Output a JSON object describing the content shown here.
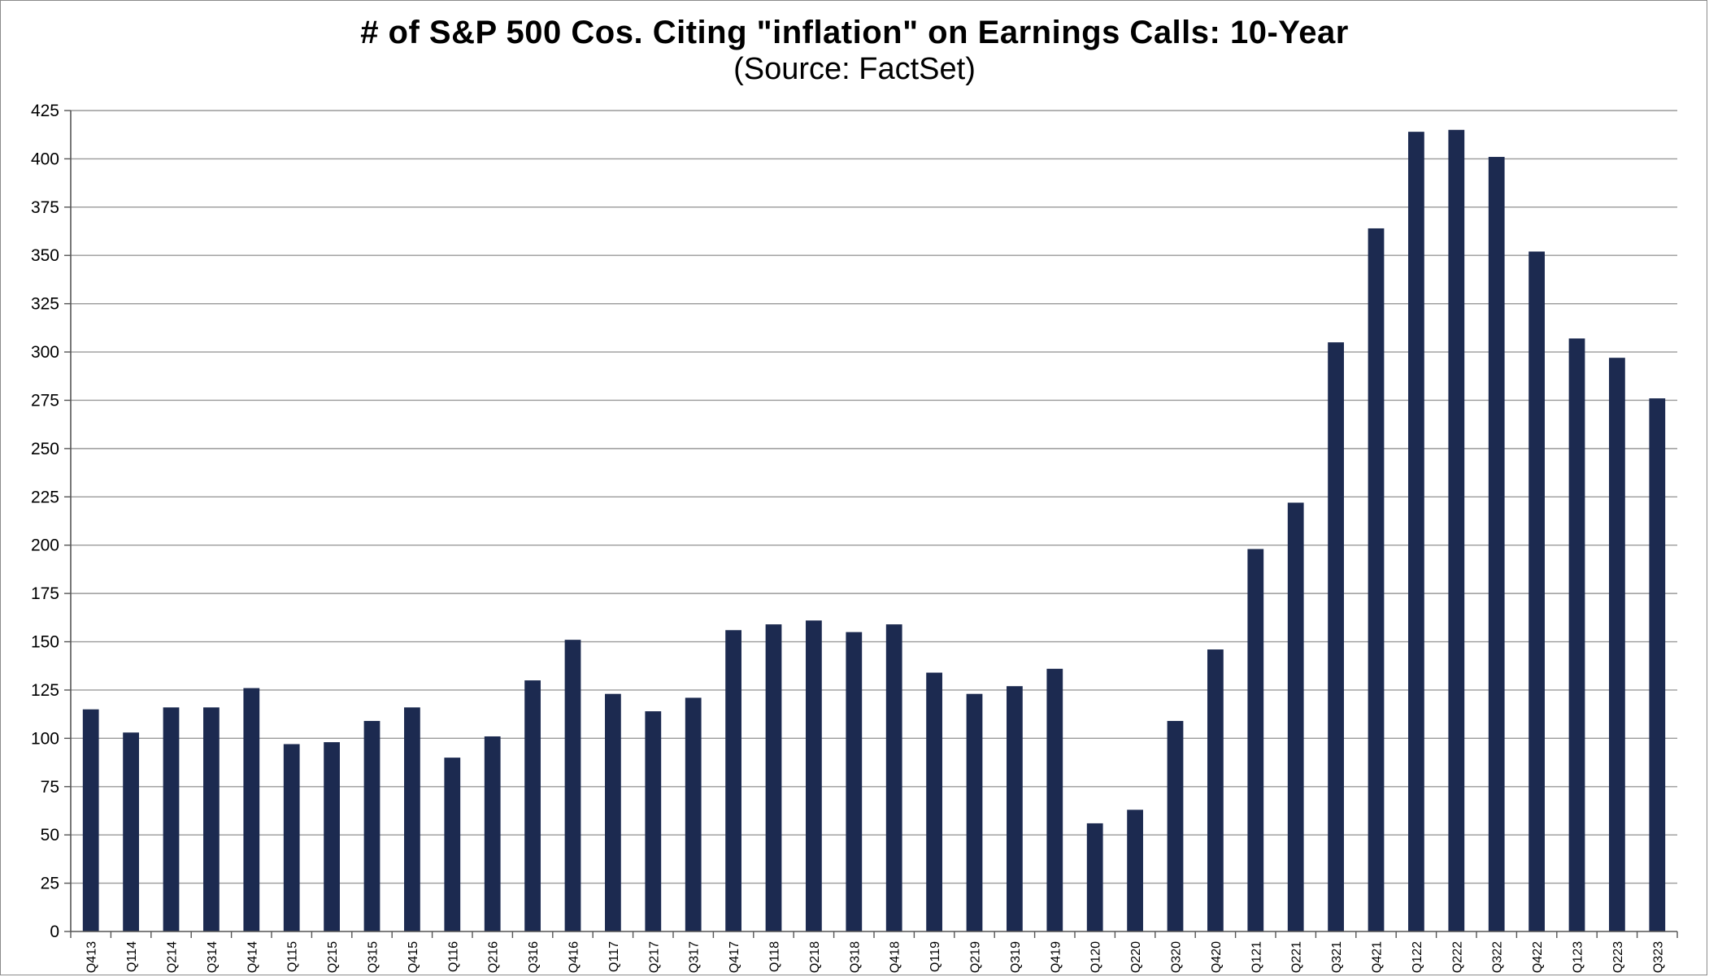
{
  "chart_data": {
    "type": "bar",
    "title": "# of S&P 500 Cos. Citing \"inflation\" on Earnings Calls: 10-Year",
    "subtitle": "(Source: FactSet)",
    "xlabel": "",
    "ylabel": "",
    "ylim": [
      0,
      425
    ],
    "yticks": [
      0,
      25,
      50,
      75,
      100,
      125,
      150,
      175,
      200,
      225,
      250,
      275,
      300,
      325,
      350,
      375,
      400,
      425
    ],
    "grid": true,
    "legend": "none",
    "bar_color": "#1c2a50",
    "categories": [
      "Q413",
      "Q114",
      "Q214",
      "Q314",
      "Q414",
      "Q115",
      "Q215",
      "Q315",
      "Q415",
      "Q116",
      "Q216",
      "Q316",
      "Q416",
      "Q117",
      "Q217",
      "Q317",
      "Q417",
      "Q118",
      "Q218",
      "Q318",
      "Q418",
      "Q119",
      "Q219",
      "Q319",
      "Q419",
      "Q120",
      "Q220",
      "Q320",
      "Q420",
      "Q121",
      "Q221",
      "Q321",
      "Q421",
      "Q122",
      "Q222",
      "Q322",
      "Q422",
      "Q123",
      "Q223",
      "Q323"
    ],
    "values": [
      115,
      103,
      116,
      116,
      126,
      97,
      98,
      109,
      116,
      90,
      101,
      130,
      151,
      123,
      114,
      121,
      156,
      159,
      161,
      155,
      159,
      134,
      123,
      127,
      136,
      56,
      63,
      109,
      146,
      198,
      222,
      305,
      364,
      414,
      415,
      401,
      352,
      307,
      297,
      276
    ]
  }
}
